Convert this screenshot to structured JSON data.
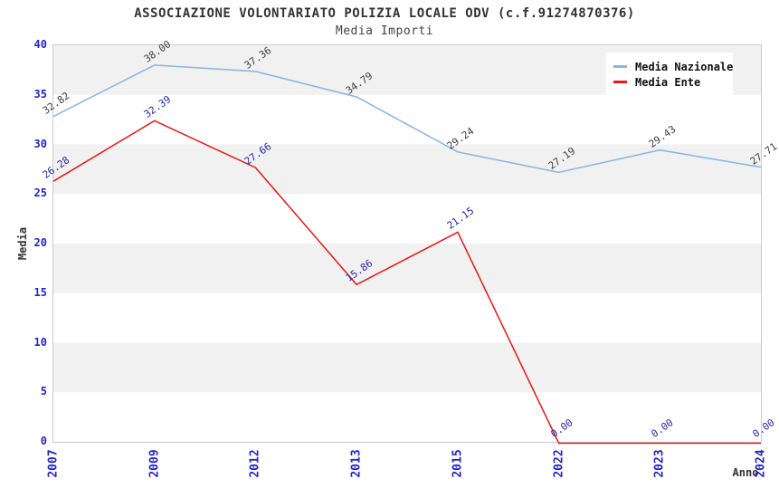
{
  "title": "ASSOCIAZIONE VOLONTARIATO POLIZIA LOCALE ODV (c.f.91274870376)",
  "subtitle": "Media Importi",
  "legend": {
    "items": [
      {
        "label": "Media Nazionale",
        "color": "#85b5e8"
      },
      {
        "label": "Media Ente",
        "color": "#ee1515"
      }
    ]
  },
  "axes": {
    "y_label": "Media",
    "x_label": "Anno",
    "y_ticks": [
      0,
      5,
      10,
      15,
      20,
      25,
      30,
      35,
      40
    ],
    "tick_color": "#2424cc",
    "band_color": "#f1f1f1",
    "border_color": "#cccccc"
  },
  "chart_data": {
    "type": "line",
    "title": "ASSOCIAZIONE VOLONTARIATO POLIZIA LOCALE ODV (c.f.91274870376)",
    "subtitle": "Media Importi",
    "xlabel": "Anno",
    "ylabel": "Media",
    "ylim": [
      0,
      40
    ],
    "grid": "horizontal-bands",
    "legend_position": "top-right",
    "categories": [
      "2007",
      "2009",
      "2012",
      "2013",
      "2015",
      "2022",
      "2023",
      "2024"
    ],
    "series": [
      {
        "name": "Media Nazionale",
        "color": "#85b5e8",
        "label_color": "#3f3f3f",
        "values": [
          32.82,
          38.0,
          37.36,
          34.79,
          29.24,
          27.19,
          29.43,
          27.71
        ]
      },
      {
        "name": "Media Ente",
        "color": "#ee1515",
        "label_color": "#2828aa",
        "values": [
          26.28,
          32.39,
          27.66,
          15.86,
          21.15,
          0.0,
          0.0,
          0.0
        ]
      }
    ]
  }
}
